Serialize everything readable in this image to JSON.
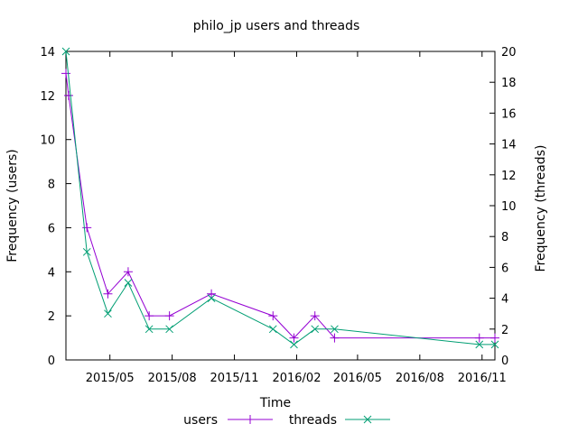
{
  "chart_data": {
    "type": "line",
    "title": "philo_jp users and threads",
    "xlabel": "Time",
    "ylabel_left": "Frequency (users)",
    "ylabel_right": "Frequency (threads)",
    "x_ticks": [
      "2015/05",
      "2015/08",
      "2015/11",
      "2016/02",
      "2016/05",
      "2016/08",
      "2016/11"
    ],
    "y_left_ticks": [
      "0",
      "2",
      "4",
      "6",
      "8",
      "10",
      "12",
      "14"
    ],
    "y_right_ticks": [
      "0",
      "2",
      "4",
      "6",
      "8",
      "10",
      "12",
      "14",
      "16",
      "18",
      "20"
    ],
    "xlim": [
      "2015-02-25",
      "2016-11-20"
    ],
    "ylim_left": [
      0,
      14
    ],
    "ylim_right": [
      0,
      20
    ],
    "grid": false,
    "legend_position": "bottom-center",
    "series": [
      {
        "name": "users",
        "axis": "left",
        "color": "#9400d3",
        "marker": "plus",
        "x": [
          "2015-02-25",
          "2015-03-01",
          "2015-03-28",
          "2015-04-28",
          "2015-05-28",
          "2015-06-28",
          "2015-07-28",
          "2015-09-28",
          "2015-12-28",
          "2016-01-28",
          "2016-02-28",
          "2016-03-28",
          "2016-10-28",
          "2016-11-20"
        ],
        "values": [
          13,
          12,
          6,
          3,
          4,
          2,
          2,
          3,
          2,
          1,
          2,
          1,
          1,
          1
        ]
      },
      {
        "name": "threads",
        "axis": "right",
        "color": "#009e73",
        "marker": "cross",
        "x": [
          "2015-02-25",
          "2015-03-28",
          "2015-04-28",
          "2015-05-28",
          "2015-06-28",
          "2015-07-28",
          "2015-09-28",
          "2015-12-28",
          "2016-01-28",
          "2016-02-28",
          "2016-03-28",
          "2016-10-28",
          "2016-11-20"
        ],
        "values": [
          20,
          7,
          3,
          5,
          2,
          2,
          4,
          2,
          1,
          2,
          2,
          1,
          1
        ]
      }
    ]
  }
}
